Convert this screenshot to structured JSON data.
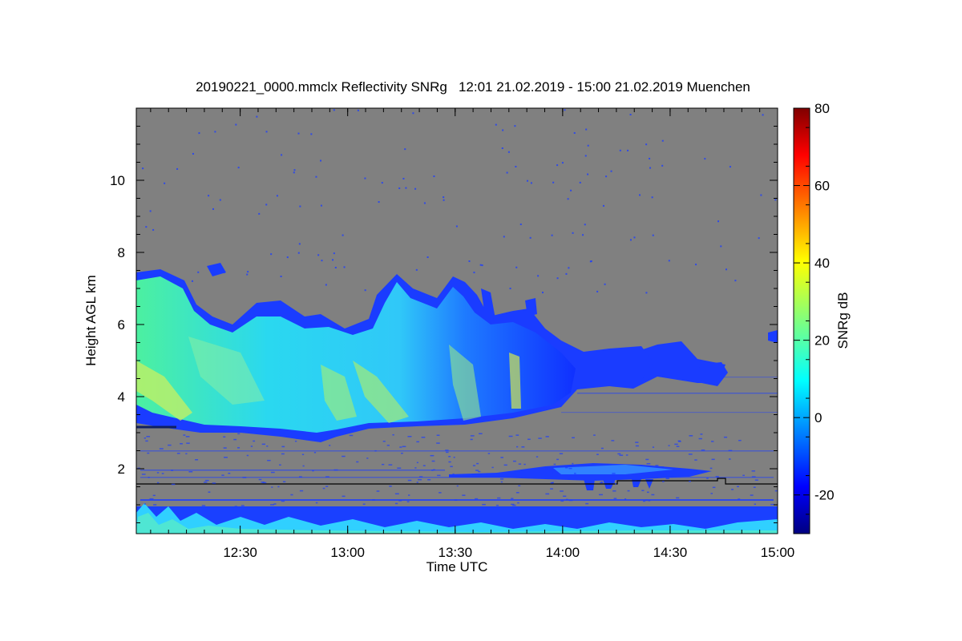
{
  "chart_data": {
    "type": "heatmap",
    "title": "20190221_0000.mmclx Reflectivity SNRg   12:01 21.02.2019 - 15:00 21.02.2019 Muenchen",
    "xlabel": "Time UTC",
    "ylabel": "Height AGL km",
    "colorbar_label": "SNRg dB",
    "x_range": [
      "12:01",
      "15:00"
    ],
    "x_ticks": [
      "12:30",
      "13:00",
      "13:30",
      "14:00",
      "14:30",
      "15:00"
    ],
    "ylim": [
      0.2,
      12.0
    ],
    "y_ticks": [
      "2",
      "4",
      "6",
      "8",
      "10"
    ],
    "colorbar_range": [
      -30,
      80
    ],
    "colorbar_ticks": [
      "-20",
      "0",
      "20",
      "40",
      "60",
      "80"
    ],
    "colormap": "jet",
    "background_color": "#808080",
    "cloud_base_line_height_km": 1.6
  }
}
